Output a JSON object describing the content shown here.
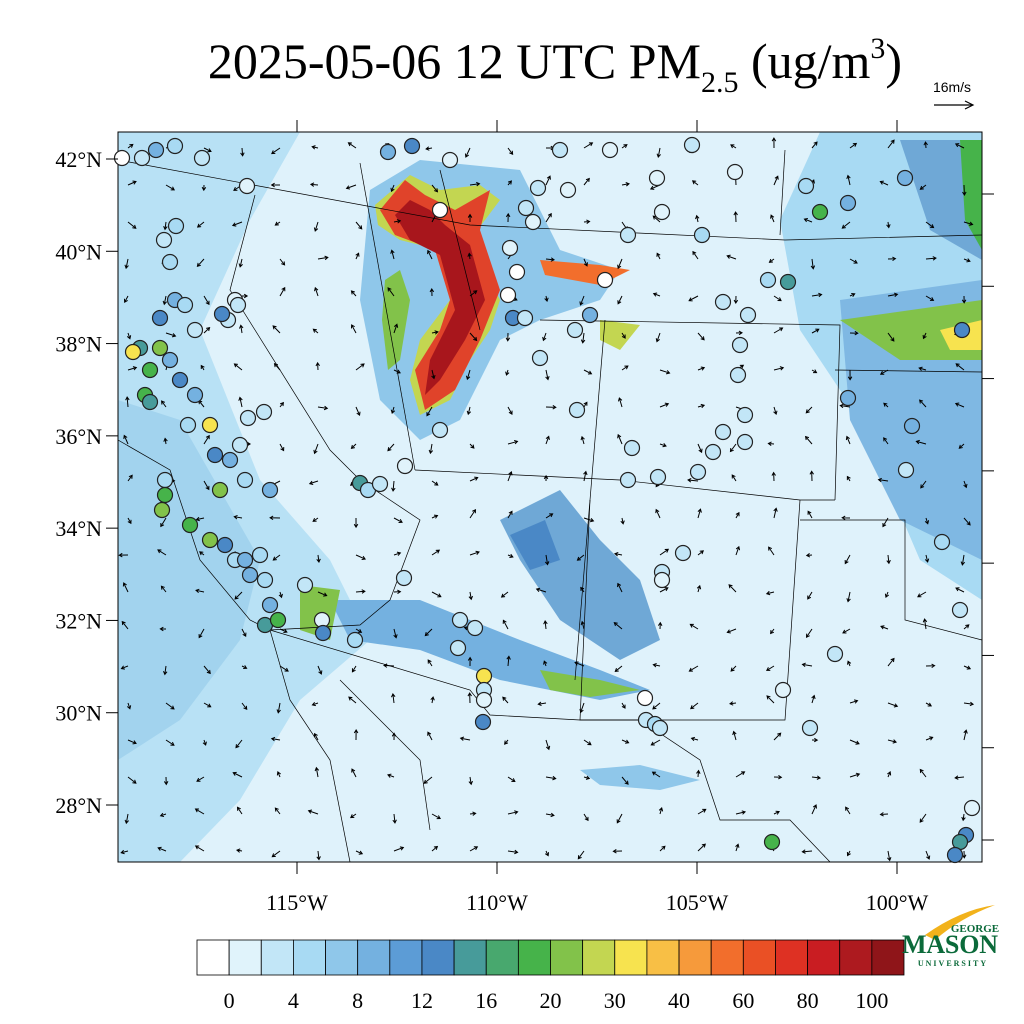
{
  "map": {
    "title": {
      "main": "2025-05-06 12 UTC PM",
      "sub": "2.5",
      "unit": " (ug/m",
      "sup": "3",
      "close": ")"
    },
    "reference_vector": "16m/s",
    "xlim": [
      -119.475,
      -97.875
    ],
    "ylim": [
      26.765,
      42.585
    ],
    "xticks": [
      {
        "value": -115,
        "label": "115°W"
      },
      {
        "value": -110,
        "label": "110°W"
      },
      {
        "value": -105,
        "label": "105°W"
      },
      {
        "value": -100,
        "label": "100°W"
      }
    ],
    "yticks": [
      {
        "value": 42,
        "label": "42°N"
      },
      {
        "value": 40,
        "label": "40°N"
      },
      {
        "value": 38,
        "label": "38°N"
      },
      {
        "value": 36,
        "label": "36°N"
      },
      {
        "value": 34,
        "label": "34°N"
      },
      {
        "value": 32,
        "label": "32°N"
      },
      {
        "value": 30,
        "label": "30°N"
      },
      {
        "value": 28,
        "label": "28°N"
      }
    ],
    "colorbar": {
      "ticks": [
        0,
        4,
        8,
        12,
        16,
        20,
        30,
        40,
        60,
        80,
        100
      ],
      "colors": [
        "#ffffff",
        "#e0f3fb",
        "#c2e6f7",
        "#a8daf3",
        "#8fc7ea",
        "#74b1e0",
        "#5c9cd6",
        "#4a88c6",
        "#479b9a",
        "#48a86e",
        "#46b34a",
        "#82c24a",
        "#c3d651",
        "#f7e34f",
        "#f8bf45",
        "#f69a3b",
        "#f26e2c",
        "#ea5025",
        "#de3123",
        "#c91d22",
        "#ad1a1f",
        "#8f1519"
      ]
    },
    "logo": {
      "top": "GEORGE",
      "main": "MASON",
      "bottom": "UNIVERSITY"
    }
  }
}
